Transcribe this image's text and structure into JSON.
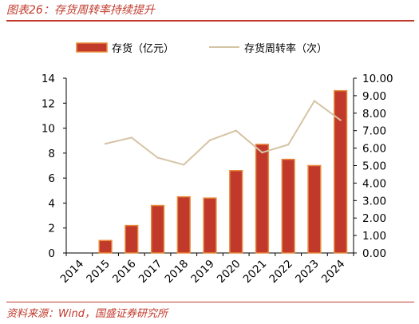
{
  "figure": {
    "title": "图表26：存货周转率持续提升",
    "source": "资料来源：Wind，国盛证券研究所"
  },
  "colors": {
    "bar_fill": "#C0392B",
    "bar_edge": "#E8893A",
    "line": "#D6C3A5",
    "accent": "#C0392B"
  },
  "chart_data": {
    "type": "bar+line",
    "categories": [
      "2014",
      "2015",
      "2016",
      "2017",
      "2018",
      "2019",
      "2020",
      "2021",
      "2022",
      "2023",
      "2024"
    ],
    "series": [
      {
        "name": "存货（亿元）",
        "type": "bar",
        "axis": "left",
        "values": [
          null,
          1.0,
          2.2,
          3.8,
          4.5,
          4.4,
          6.6,
          8.7,
          7.5,
          7.0,
          13.0
        ]
      },
      {
        "name": "存货周转率（次）",
        "type": "line",
        "axis": "right",
        "values": [
          null,
          6.25,
          6.6,
          5.45,
          5.05,
          6.45,
          7.0,
          5.75,
          6.2,
          8.7,
          7.6
        ]
      }
    ],
    "y_left": {
      "lim": [
        0,
        14
      ],
      "ticks": [
        "0",
        "2",
        "4",
        "6",
        "8",
        "10",
        "12",
        "14"
      ]
    },
    "y_right": {
      "lim": [
        0,
        10
      ],
      "ticks": [
        "0.00",
        "1.00",
        "2.00",
        "3.00",
        "4.00",
        "5.00",
        "6.00",
        "7.00",
        "8.00",
        "9.00",
        "10.00"
      ]
    },
    "legend_position": "top",
    "grid": false
  }
}
